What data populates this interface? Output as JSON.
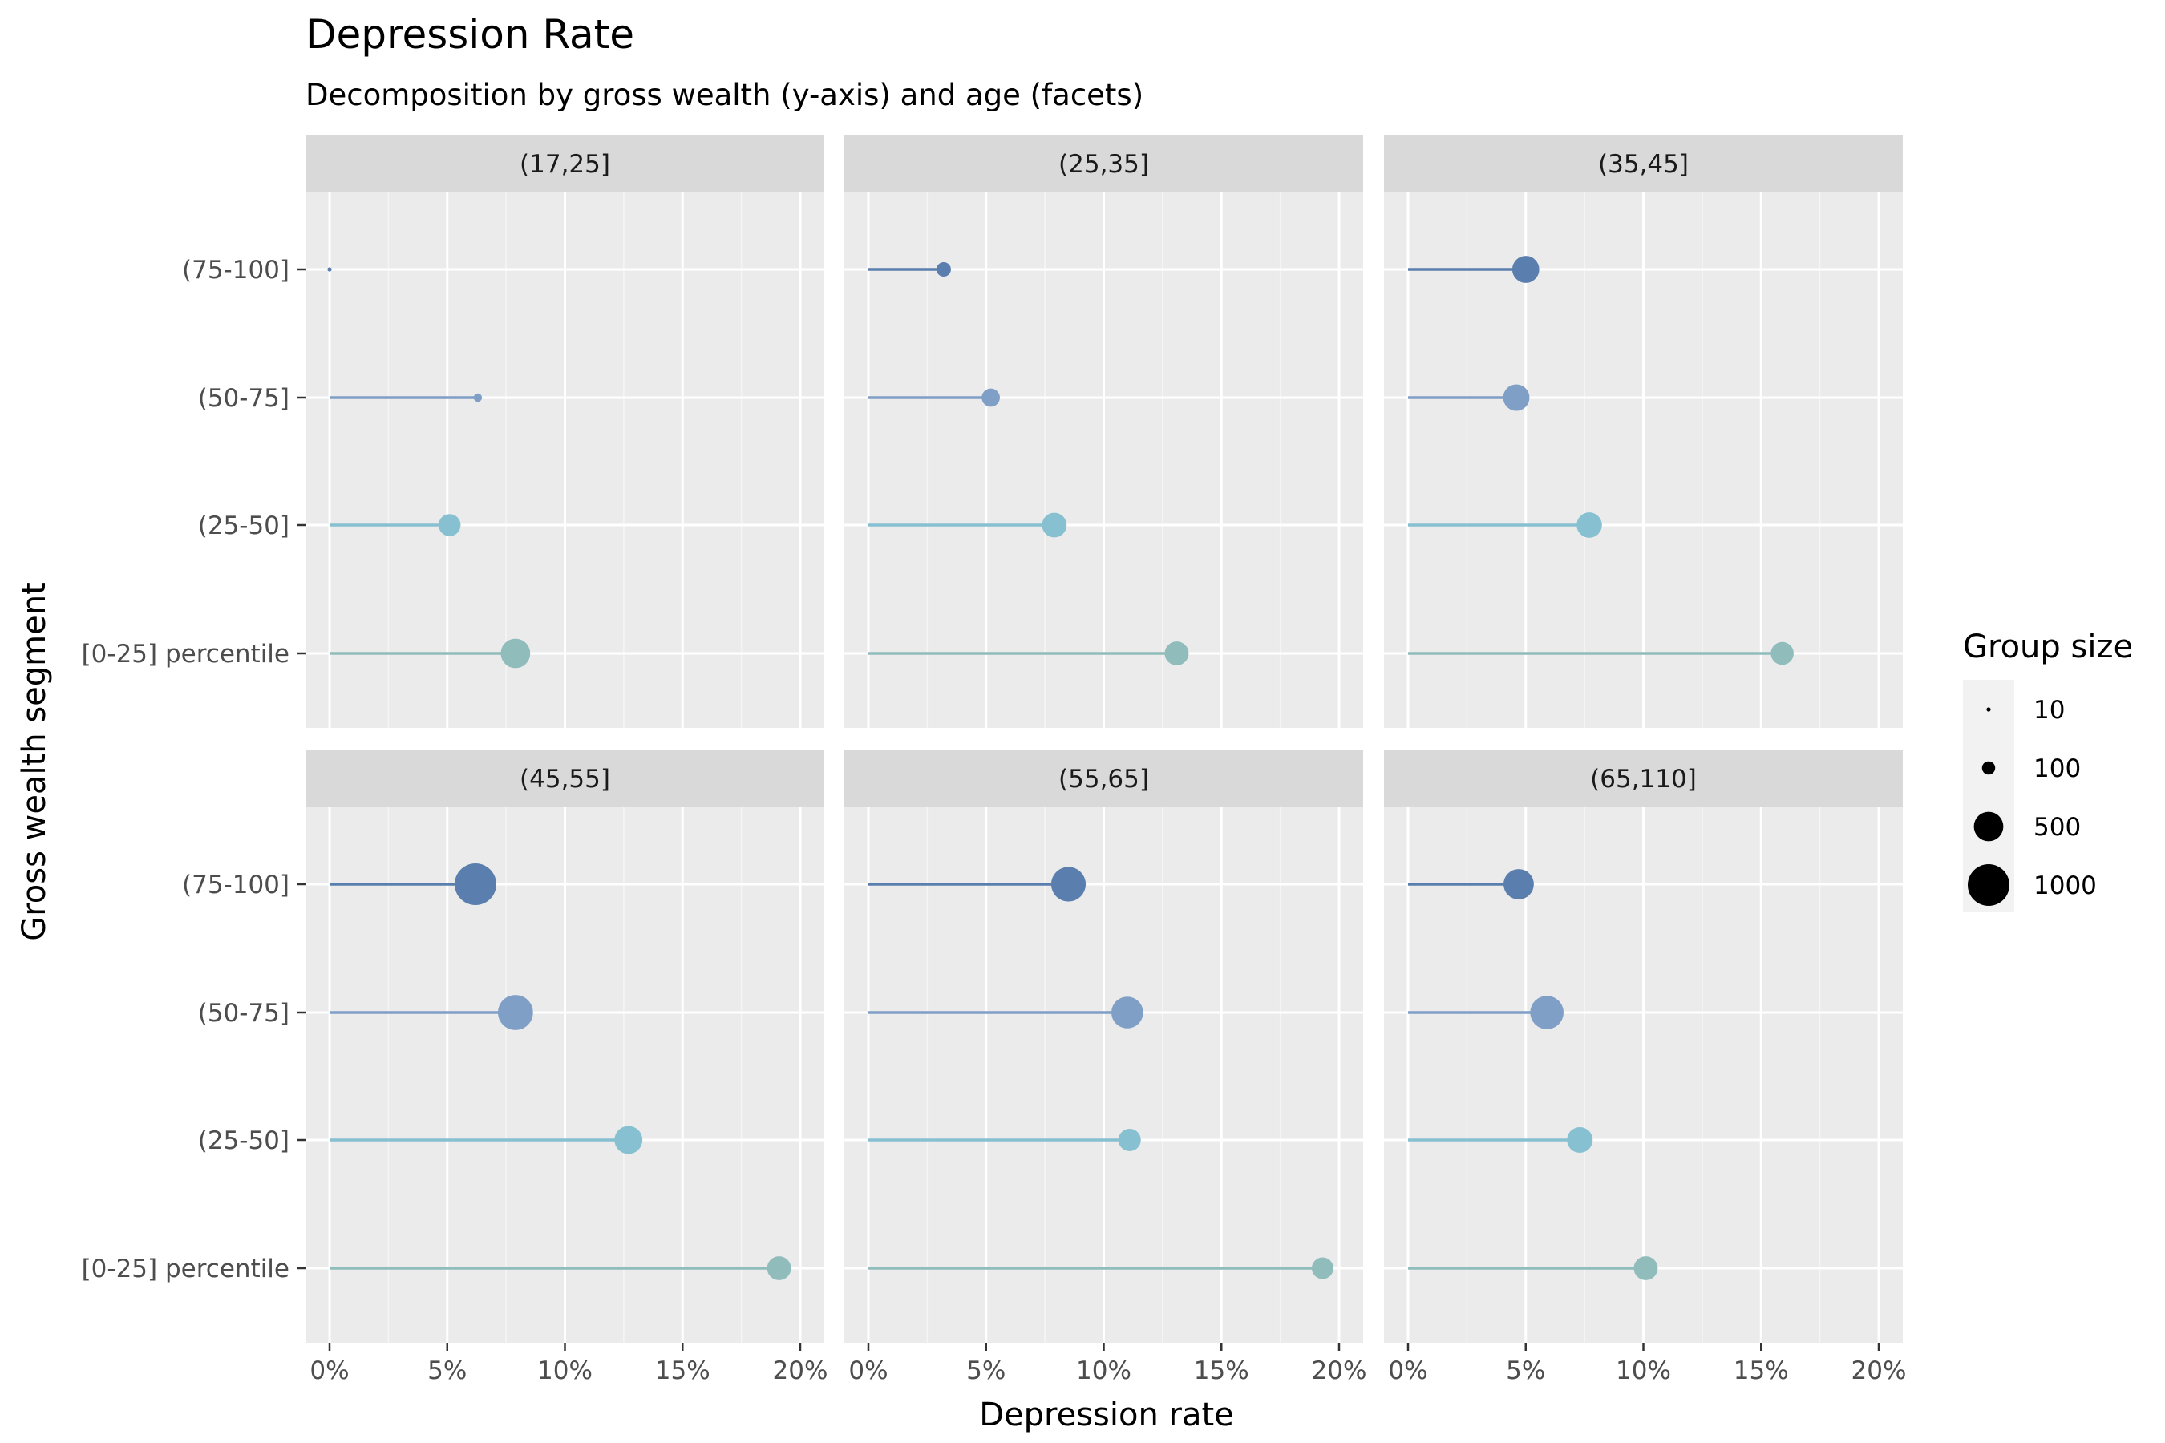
{
  "chart_data": {
    "type": "lollipop",
    "title": "Depression Rate",
    "subtitle": "Decomposition by gross wealth (y-axis) and age (facets)",
    "xlabel": "Depression rate",
    "ylabel": "Gross wealth segment",
    "xlim": [
      0,
      0.2
    ],
    "x_ticks": [
      "0%",
      "5%",
      "10%",
      "15%",
      "20%"
    ],
    "x_tick_values": [
      0,
      0.05,
      0.1,
      0.15,
      0.2
    ],
    "categories": [
      "(75-100]",
      "(50-75]",
      "(25-50]",
      "[0-25] percentile"
    ],
    "category_colors": [
      "#5a7fae",
      "#7f9fc6",
      "#87c0d1",
      "#90bcbb"
    ],
    "grid": true,
    "legend": {
      "title": "Group size",
      "placement": "right",
      "entries": [
        {
          "label": "10",
          "value": 10
        },
        {
          "label": "100",
          "value": 100
        },
        {
          "label": "500",
          "value": 500
        },
        {
          "label": "1000",
          "value": 1000
        }
      ]
    },
    "facets": [
      {
        "label": "(17,25]",
        "values": [
          0.0,
          0.063,
          0.051,
          0.079
        ],
        "sizes": [
          10,
          40,
          280,
          500
        ]
      },
      {
        "label": "(25,35]",
        "values": [
          0.032,
          0.052,
          0.079,
          0.131
        ],
        "sizes": [
          120,
          190,
          350,
          330
        ]
      },
      {
        "label": "(35,45]",
        "values": [
          0.05,
          0.046,
          0.077,
          0.159
        ],
        "sizes": [
          420,
          400,
          370,
          300
        ]
      },
      {
        "label": "(45,55]",
        "values": [
          0.062,
          0.079,
          0.127,
          0.191
        ],
        "sizes": [
          1000,
          710,
          450,
          330
        ]
      },
      {
        "label": "(55,65]",
        "values": [
          0.085,
          0.11,
          0.111,
          0.193
        ],
        "sizes": [
          690,
          580,
          290,
          270
        ]
      },
      {
        "label": "(65,110]",
        "values": [
          0.047,
          0.059,
          0.073,
          0.101
        ],
        "sizes": [
          530,
          640,
          380,
          330
        ]
      }
    ]
  }
}
